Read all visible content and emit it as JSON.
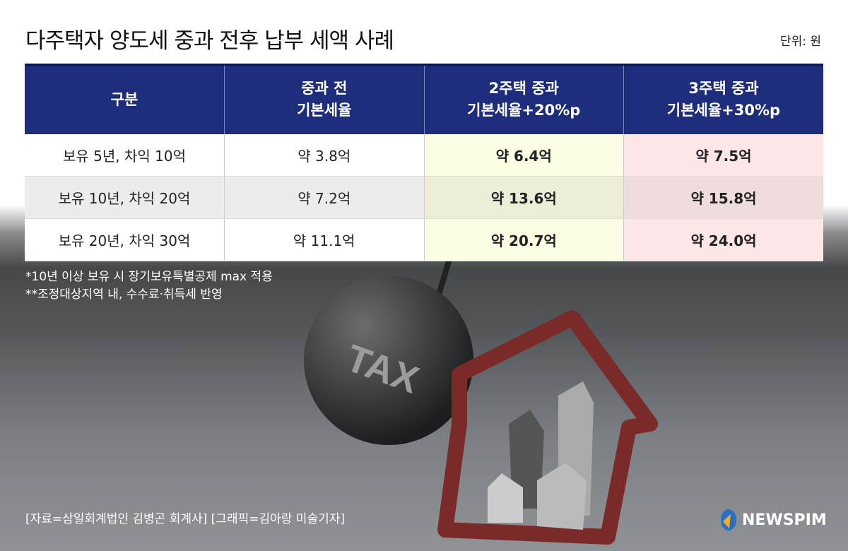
{
  "title": "다주택자 양도세 중과 전후 납부 세액 사례",
  "unit": "단위: 원",
  "table": {
    "headers": [
      "구분",
      "중과 전\n기본세율",
      "2주택 중과\n기본세율+20%p",
      "3주택 중과\n기본세율+30%p"
    ],
    "rows": [
      [
        "보유 5년, 차익 10억",
        "약 3.8억",
        "약 6.4억",
        "약 7.5억"
      ],
      [
        "보유 10년, 차익 20억",
        "약 7.2억",
        "약 13.6억",
        "약 15.8억"
      ],
      [
        "보유 20년, 차익 30억",
        "약 11.1억",
        "약 20.7억",
        "약 24.0억"
      ]
    ]
  },
  "notes": [
    "*10년 이상 보유 시 장기보유특별공제 max 적용",
    "**조정대상지역 내, 수수료·취득세 반영"
  ],
  "source": "[자료=삼일회계법인 김병곤 회계사] [그래픽=김아랑 미술기자]",
  "logo": "NEWSPIM",
  "ball_label": "TAX",
  "colors": {
    "header": "#1d2d7c",
    "col2": "#fdfde3",
    "col3": "#fde6e8"
  },
  "chart_data": {
    "type": "table",
    "title": "다주택자 양도세 중과 전후 납부 세액 사례",
    "columns": [
      "구분",
      "중과 전 기본세율",
      "2주택 중과 기본세율+20%p",
      "3주택 중과 기본세율+30%p"
    ],
    "rows": [
      [
        "보유 5년, 차익 10억",
        "약 3.8억",
        "약 6.4억",
        "약 7.5억"
      ],
      [
        "보유 10년, 차익 20억",
        "약 7.2억",
        "약 13.6억",
        "약 15.8억"
      ],
      [
        "보유 20년, 차익 30억",
        "약 11.1억",
        "약 20.7억",
        "약 24.0억"
      ]
    ]
  }
}
